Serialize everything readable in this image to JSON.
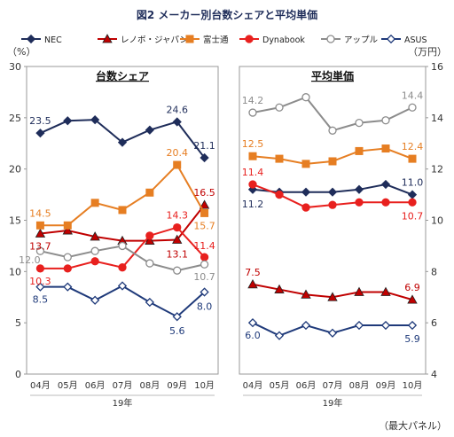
{
  "title": "図2 メーカー別台数シェアと平均単価",
  "footnote": "（最大パネル）",
  "legend": [
    {
      "name": "NEC",
      "color": "#1f2d5a",
      "marker": "diamond"
    },
    {
      "name": "レノボ・ジャパン",
      "color": "#c00000",
      "marker": "triangle"
    },
    {
      "name": "富士通",
      "color": "#e67e22",
      "marker": "square"
    },
    {
      "name": "Dynabook",
      "color": "#e8201e",
      "marker": "circle"
    },
    {
      "name": "アップル",
      "color": "#8c8c8c",
      "marker": "circle-open"
    },
    {
      "name": "ASUS",
      "color": "#1f3a7a",
      "marker": "diamond-open"
    }
  ],
  "chart_data": [
    {
      "type": "line",
      "title": "台数シェア",
      "unit": "（%）",
      "categories": [
        "04月",
        "05月",
        "06月",
        "07月",
        "08月",
        "09月",
        "10月"
      ],
      "year_label": "19年",
      "ylim": [
        0,
        30
      ],
      "yticks": [
        0,
        5,
        10,
        15,
        20,
        25,
        30
      ],
      "series": [
        {
          "name": "NEC",
          "values": [
            23.5,
            24.7,
            24.8,
            22.6,
            23.8,
            24.6,
            21.1
          ]
        },
        {
          "name": "レノボ・ジャパン",
          "values": [
            13.7,
            14.0,
            13.4,
            13.0,
            13.0,
            13.1,
            16.5
          ]
        },
        {
          "name": "富士通",
          "values": [
            14.5,
            14.5,
            16.7,
            16.0,
            17.7,
            20.4,
            15.7
          ]
        },
        {
          "name": "Dynabook",
          "values": [
            10.3,
            10.3,
            11.0,
            10.4,
            13.5,
            14.3,
            11.4
          ]
        },
        {
          "name": "アップル",
          "values": [
            12.0,
            11.4,
            12.0,
            12.5,
            10.8,
            10.1,
            10.7
          ]
        },
        {
          "name": "ASUS",
          "values": [
            8.5,
            8.5,
            7.2,
            8.6,
            7.0,
            5.6,
            8.0
          ]
        }
      ],
      "labels": [
        {
          "series": "NEC",
          "text": "23.5",
          "index": 0,
          "dx": 0,
          "dy": -14
        },
        {
          "series": "NEC",
          "text": "24.6",
          "index": 5,
          "dx": 0,
          "dy": -14
        },
        {
          "series": "NEC",
          "text": "21.1",
          "index": 6,
          "dx": 0,
          "dy": -14
        },
        {
          "series": "富士通",
          "text": "14.5",
          "index": 0,
          "dx": 0,
          "dy": -14
        },
        {
          "series": "富士通",
          "text": "20.4",
          "index": 5,
          "dx": 0,
          "dy": -14
        },
        {
          "series": "富士通",
          "text": "15.7",
          "index": 6,
          "dx": 0,
          "dy": 14
        },
        {
          "series": "レノボ・ジャパン",
          "text": "13.7",
          "index": 0,
          "dx": 0,
          "dy": 14
        },
        {
          "series": "レノボ・ジャパン",
          "text": "13.1",
          "index": 5,
          "dx": 0,
          "dy": 16
        },
        {
          "series": "レノボ・ジャパン",
          "text": "16.5",
          "index": 6,
          "dx": 0,
          "dy": -14
        },
        {
          "series": "Dynabook",
          "text": "14.3",
          "index": 5,
          "dx": 0,
          "dy": -14
        },
        {
          "series": "Dynabook",
          "text": "11.4",
          "index": 6,
          "dx": 0,
          "dy": -13
        },
        {
          "series": "Dynabook",
          "text": "10.3",
          "index": 0,
          "dx": 0,
          "dy": 14
        },
        {
          "series": "アップル",
          "text": "12.0",
          "index": 0,
          "dx": -12,
          "dy": 10
        },
        {
          "series": "アップル",
          "text": "10.7",
          "index": 6,
          "dx": 0,
          "dy": 14
        },
        {
          "series": "ASUS",
          "text": "8.5",
          "index": 0,
          "dx": 0,
          "dy": 14
        },
        {
          "series": "ASUS",
          "text": "5.6",
          "index": 5,
          "dx": 0,
          "dy": 16
        },
        {
          "series": "ASUS",
          "text": "8.0",
          "index": 6,
          "dx": 0,
          "dy": 16
        }
      ]
    },
    {
      "type": "line",
      "title": "平均単価",
      "unit": "（万円）",
      "categories": [
        "04月",
        "05月",
        "06月",
        "07月",
        "08月",
        "09月",
        "10月"
      ],
      "year_label": "19年",
      "ylim": [
        4,
        16
      ],
      "yticks": [
        4,
        6,
        8,
        10,
        12,
        14,
        16
      ],
      "series": [
        {
          "name": "NEC",
          "values": [
            11.2,
            11.1,
            11.1,
            11.1,
            11.2,
            11.4,
            11.0
          ]
        },
        {
          "name": "レノボ・ジャパン",
          "values": [
            7.5,
            7.3,
            7.1,
            7.0,
            7.2,
            7.2,
            6.9
          ]
        },
        {
          "name": "富士通",
          "values": [
            12.5,
            12.4,
            12.2,
            12.3,
            12.7,
            12.8,
            12.4
          ]
        },
        {
          "name": "Dynabook",
          "values": [
            11.4,
            11.0,
            10.5,
            10.6,
            10.7,
            10.7,
            10.7
          ]
        },
        {
          "name": "アップル",
          "values": [
            14.2,
            14.4,
            14.8,
            13.5,
            13.8,
            13.9,
            14.4
          ]
        },
        {
          "name": "ASUS",
          "values": [
            6.0,
            5.5,
            5.9,
            5.6,
            5.9,
            5.9,
            5.9
          ]
        }
      ],
      "labels": [
        {
          "series": "アップル",
          "text": "14.2",
          "index": 0,
          "dx": 0,
          "dy": -14
        },
        {
          "series": "アップル",
          "text": "14.4",
          "index": 6,
          "dx": 0,
          "dy": -14
        },
        {
          "series": "富士通",
          "text": "12.5",
          "index": 0,
          "dx": 0,
          "dy": -14
        },
        {
          "series": "富士通",
          "text": "12.4",
          "index": 6,
          "dx": 0,
          "dy": -14
        },
        {
          "series": "Dynabook",
          "text": "11.4",
          "index": 0,
          "dx": 0,
          "dy": -14
        },
        {
          "series": "NEC",
          "text": "11.2",
          "index": 0,
          "dx": 0,
          "dy": 16
        },
        {
          "series": "NEC",
          "text": "11.0",
          "index": 6,
          "dx": 0,
          "dy": -14
        },
        {
          "series": "Dynabook",
          "text": "10.7",
          "index": 6,
          "dx": 0,
          "dy": 15
        },
        {
          "series": "レノボ・ジャパン",
          "text": "7.5",
          "index": 0,
          "dx": 0,
          "dy": -14
        },
        {
          "series": "レノボ・ジャパン",
          "text": "6.9",
          "index": 6,
          "dx": 0,
          "dy": -14
        },
        {
          "series": "ASUS",
          "text": "6.0",
          "index": 0,
          "dx": 0,
          "dy": 14
        },
        {
          "series": "ASUS",
          "text": "5.9",
          "index": 6,
          "dx": 0,
          "dy": 15
        }
      ]
    }
  ]
}
